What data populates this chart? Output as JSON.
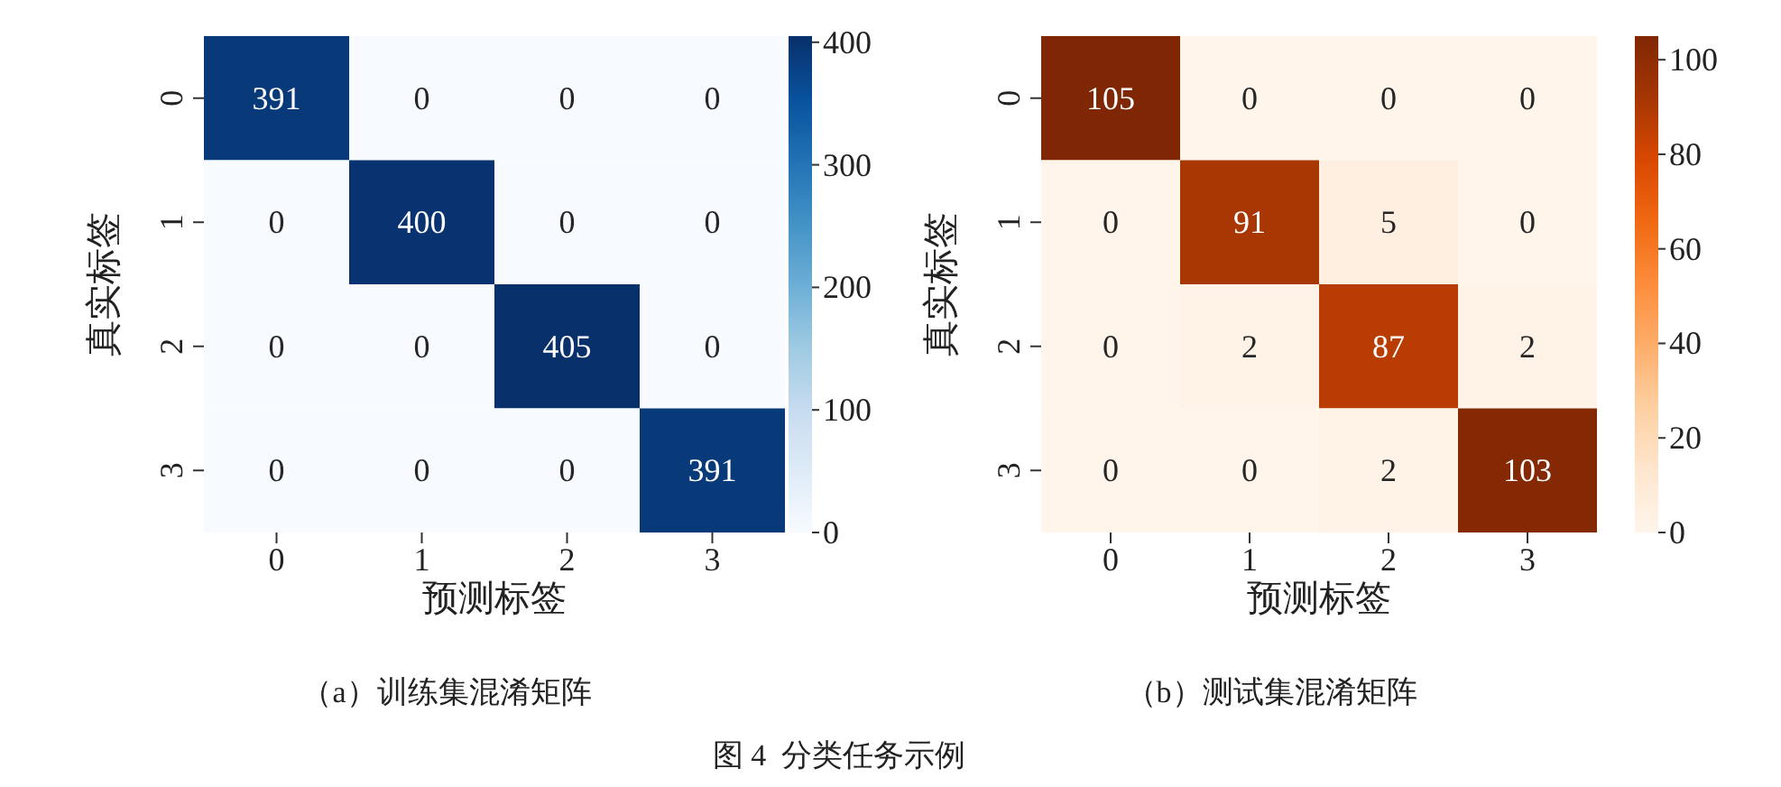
{
  "chart_data": [
    {
      "type": "heatmap",
      "title": "（a）训练集混淆矩阵",
      "xlabel": "预测标签",
      "ylabel": "真实标签",
      "categories": [
        "0",
        "1",
        "2",
        "3"
      ],
      "y_categories": [
        "0",
        "1",
        "2",
        "3"
      ],
      "cells": [
        [
          391,
          0,
          0,
          0
        ],
        [
          0,
          400,
          0,
          0
        ],
        [
          0,
          0,
          405,
          0
        ],
        [
          0,
          0,
          0,
          391
        ]
      ],
      "data_labels": true,
      "clim": [
        0,
        405
      ],
      "cticks": [
        0,
        100,
        200,
        300,
        400
      ],
      "colors": [
        "#f7fbff",
        "#deebf7",
        "#c6dbef",
        "#9ecae1",
        "#6baed6",
        "#4292c6",
        "#2171b5",
        "#08519c",
        "#08306b"
      ]
    },
    {
      "type": "heatmap",
      "title": "（b）测试集混淆矩阵",
      "xlabel": "预测标签",
      "ylabel": "真实标签",
      "categories": [
        "0",
        "1",
        "2",
        "3"
      ],
      "y_categories": [
        "0",
        "1",
        "2",
        "3"
      ],
      "cells": [
        [
          105,
          0,
          0,
          0
        ],
        [
          0,
          91,
          5,
          0
        ],
        [
          0,
          2,
          87,
          2
        ],
        [
          0,
          0,
          2,
          103
        ]
      ],
      "data_labels": true,
      "clim": [
        0,
        105
      ],
      "cticks": [
        0,
        20,
        40,
        60,
        80,
        100
      ],
      "colors": [
        "#fff5eb",
        "#fee6ce",
        "#fdd0a2",
        "#fdae6b",
        "#fd8d3c",
        "#f16913",
        "#d94801",
        "#a63603",
        "#7f2704"
      ],
      "annotations": [
        "图 4  分类任务示例"
      ]
    }
  ]
}
